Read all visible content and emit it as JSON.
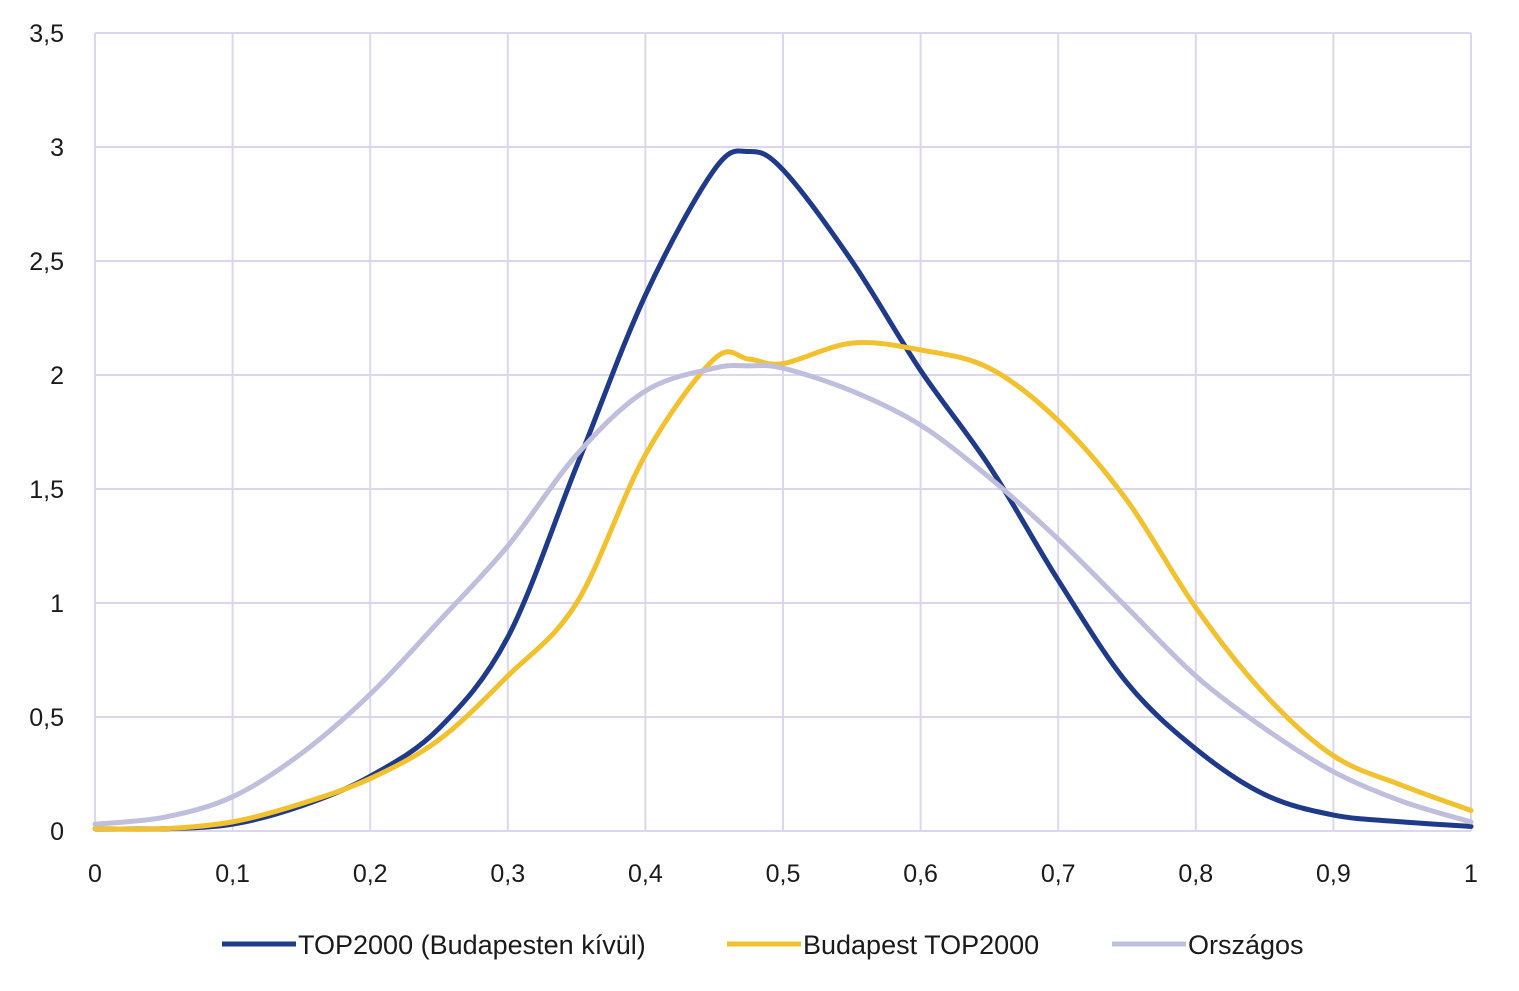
{
  "chart_data": {
    "type": "line",
    "title": "",
    "xlabel": "",
    "ylabel": "",
    "xlim": [
      0,
      1
    ],
    "ylim": [
      0,
      3.5
    ],
    "x_ticks": [
      0,
      0.1,
      0.2,
      0.3,
      0.4,
      0.5,
      0.6,
      0.7,
      0.8,
      0.9,
      1
    ],
    "x_tick_labels": [
      "0",
      "0,1",
      "0,2",
      "0,3",
      "0,4",
      "0,5",
      "0,6",
      "0,7",
      "0,8",
      "0,9",
      "1"
    ],
    "y_ticks": [
      0,
      0.5,
      1,
      1.5,
      2,
      2.5,
      3,
      3.5
    ],
    "y_tick_labels": [
      "0",
      "0,5",
      "1",
      "1,5",
      "2",
      "2,5",
      "3",
      "3,5"
    ],
    "grid": true,
    "legend_position": "bottom",
    "colors": {
      "grid": "#dcd7ee",
      "axis": "#dcd7ee"
    },
    "series": [
      {
        "name": "TOP2000 (Budapesten kívül)",
        "color": "#203a8a",
        "x": [
          0,
          0.05,
          0.1,
          0.15,
          0.2,
          0.25,
          0.3,
          0.35,
          0.4,
          0.45,
          0.475,
          0.5,
          0.55,
          0.6,
          0.65,
          0.7,
          0.75,
          0.8,
          0.85,
          0.9,
          0.95,
          1
        ],
        "values": [
          0.01,
          0.01,
          0.03,
          0.11,
          0.24,
          0.45,
          0.85,
          1.6,
          2.35,
          2.9,
          2.98,
          2.9,
          2.5,
          2.02,
          1.6,
          1.1,
          0.65,
          0.36,
          0.16,
          0.07,
          0.04,
          0.02
        ]
      },
      {
        "name": "Budapest TOP2000",
        "color": "#f2c12e",
        "x": [
          0,
          0.05,
          0.1,
          0.15,
          0.2,
          0.25,
          0.3,
          0.35,
          0.4,
          0.45,
          0.475,
          0.5,
          0.55,
          0.6,
          0.65,
          0.7,
          0.75,
          0.8,
          0.85,
          0.9,
          0.95,
          1
        ],
        "values": [
          0.01,
          0.01,
          0.04,
          0.12,
          0.23,
          0.4,
          0.68,
          1.0,
          1.65,
          2.07,
          2.07,
          2.05,
          2.14,
          2.11,
          2.03,
          1.8,
          1.45,
          0.98,
          0.6,
          0.33,
          0.2,
          0.09
        ]
      },
      {
        "name": "Országos",
        "color": "#bfbfdd",
        "x": [
          0,
          0.05,
          0.1,
          0.15,
          0.2,
          0.25,
          0.3,
          0.35,
          0.4,
          0.45,
          0.475,
          0.5,
          0.55,
          0.6,
          0.65,
          0.7,
          0.75,
          0.8,
          0.85,
          0.9,
          0.95,
          1
        ],
        "values": [
          0.03,
          0.06,
          0.15,
          0.34,
          0.6,
          0.92,
          1.25,
          1.65,
          1.93,
          2.03,
          2.04,
          2.03,
          1.93,
          1.78,
          1.55,
          1.28,
          0.98,
          0.68,
          0.45,
          0.26,
          0.13,
          0.04
        ]
      }
    ]
  }
}
